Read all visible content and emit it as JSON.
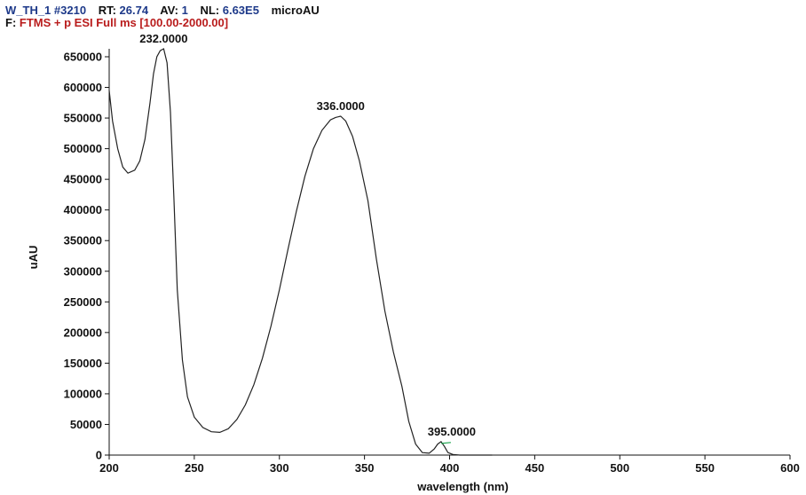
{
  "header": {
    "line1": {
      "scan_name": "W_TH_1",
      "scan_number": "#3210",
      "rt_label": "RT:",
      "rt_value": "26.74",
      "av_label": "AV:",
      "av_value": "1",
      "nl_label": "NL:",
      "nl_value": "6.63E5",
      "unit": "microAU"
    },
    "line2": {
      "filter_label": "F:",
      "filter_value": "FTMS + p ESI Full ms [100.00-2000.00]"
    }
  },
  "colors": {
    "header_blue": "#1e3a8a",
    "header_red": "#b91c1c",
    "trace": "#222222",
    "marker": "#16a34a"
  },
  "chart_data": {
    "type": "line",
    "title": "",
    "xlabel": "wavelength (nm)",
    "ylabel": "uAU",
    "xlim": [
      200,
      600
    ],
    "ylim": [
      0,
      663000
    ],
    "x_ticks": [
      200,
      250,
      300,
      350,
      400,
      450,
      500,
      550,
      600
    ],
    "y_ticks": [
      0,
      50000,
      100000,
      150000,
      200000,
      250000,
      300000,
      350000,
      400000,
      450000,
      500000,
      550000,
      600000,
      650000
    ],
    "grid": false,
    "legend": "none",
    "series": [
      {
        "x": [
          200,
          202,
          205,
          208,
          211,
          215,
          218,
          221,
          224,
          226,
          228,
          230,
          232,
          234,
          236,
          238,
          240,
          243,
          246,
          250,
          255,
          260,
          265,
          270,
          275,
          280,
          285,
          290,
          295,
          300,
          305,
          310,
          315,
          320,
          325,
          330,
          333,
          336,
          339,
          343,
          347,
          352,
          357,
          362,
          367,
          372,
          376,
          380,
          384,
          388,
          391,
          393,
          395,
          397,
          399,
          402,
          406,
          410,
          415,
          420,
          425
        ],
        "y": [
          595000,
          545000,
          500000,
          470000,
          460000,
          465000,
          480000,
          515000,
          575000,
          622000,
          650000,
          660000,
          663000,
          640000,
          560000,
          420000,
          270000,
          155000,
          95000,
          62000,
          45000,
          38000,
          37000,
          43000,
          58000,
          82000,
          115000,
          158000,
          210000,
          270000,
          335000,
          398000,
          455000,
          500000,
          530000,
          547000,
          551000,
          553000,
          545000,
          520000,
          480000,
          415000,
          320000,
          235000,
          168000,
          112000,
          55000,
          18000,
          4000,
          3000,
          10000,
          18000,
          22000,
          14000,
          4000,
          1000,
          0,
          0,
          0,
          0,
          0
        ]
      }
    ],
    "annotations": [
      {
        "text": "232.0000",
        "x": 232,
        "y": 663000
      },
      {
        "text": "336.0000",
        "x": 336,
        "y": 553000
      },
      {
        "text": "395.0000",
        "x": 395,
        "y": 22000
      }
    ]
  }
}
